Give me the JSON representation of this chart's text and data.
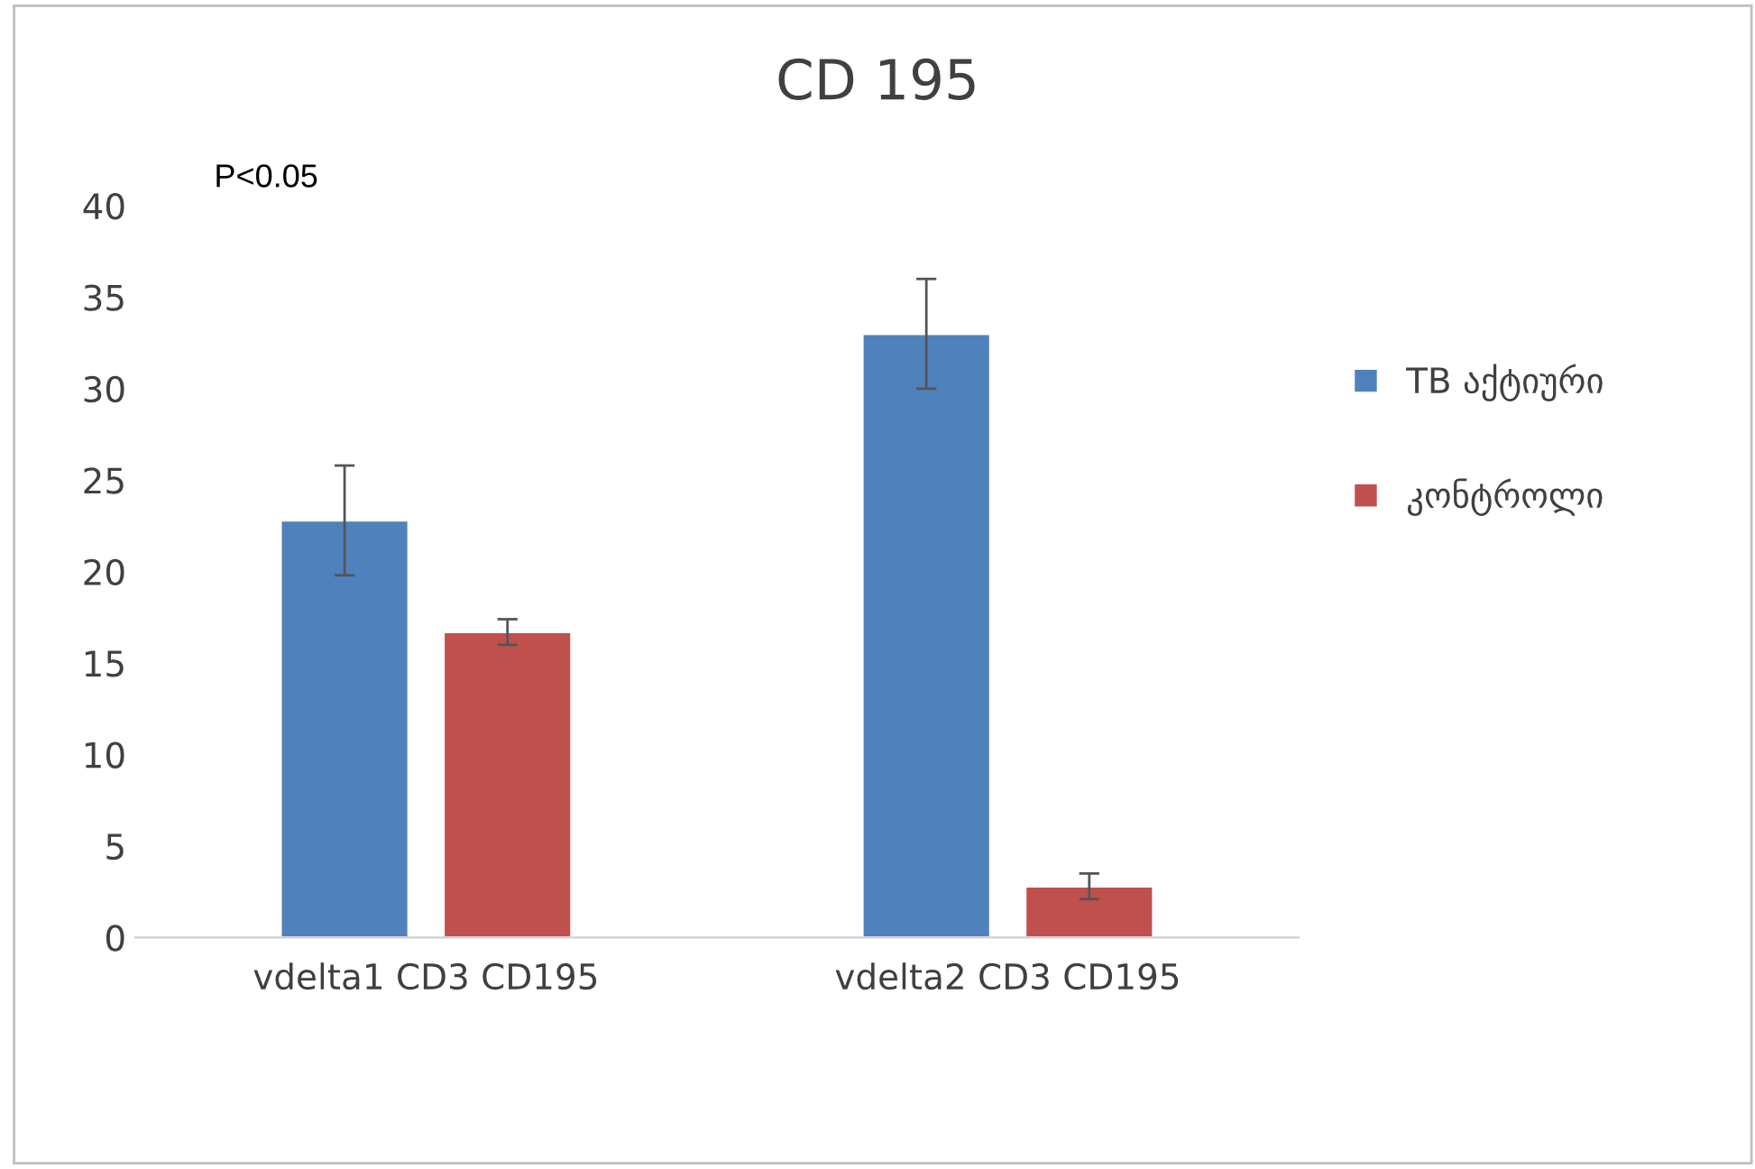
{
  "chart_data": {
    "type": "bar",
    "title": "CD 195",
    "categories": [
      "vdelta1 CD3 CD195",
      "vdelta2 CD3 CD195"
    ],
    "series": [
      {
        "name": "TB აქტიური",
        "color": "#4f81bd",
        "values": [
          22.8,
          33
        ],
        "errors": [
          3,
          3
        ]
      },
      {
        "name": "კონტროლი",
        "color": "#c0504d",
        "values": [
          16.7,
          2.8
        ],
        "errors": [
          0.7,
          0.7
        ]
      }
    ],
    "ylim": [
      0,
      40
    ],
    "yticks": [
      0,
      5,
      10,
      15,
      20,
      25,
      30,
      35,
      40
    ],
    "grid": false,
    "legend": "right",
    "annotations": [
      "P<0.05"
    ]
  }
}
